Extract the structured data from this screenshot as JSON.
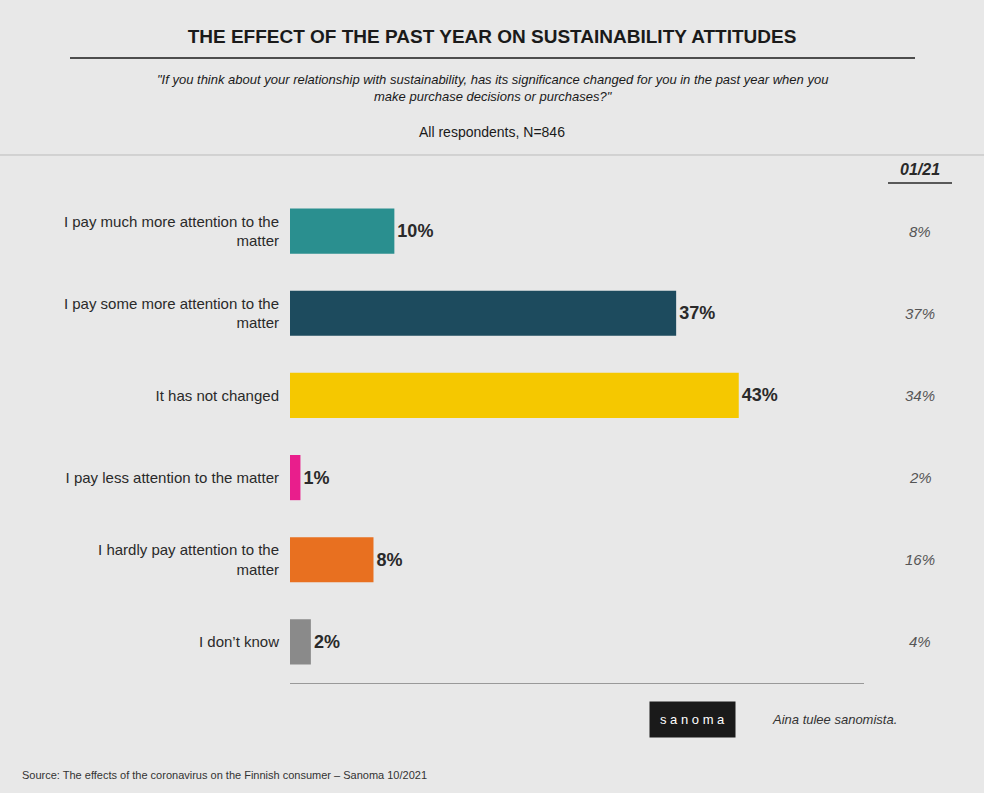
{
  "chart_data": {
    "type": "bar",
    "orientation": "horizontal",
    "title": "THE EFFECT OF THE PAST YEAR ON SUSTAINABILITY ATTITUDES",
    "subtitle": [
      "\"If you think about your relationship with sustainability, has its significance changed for you in the past year when you\nmake purchase decisions or purchases?\"",
      "All respondents, N=846"
    ],
    "categories": [
      "I pay much more attention to the\nmatter",
      "I pay some more attention to the\nmatter",
      "It has not changed",
      "I pay less attention to the matter",
      "I hardly pay attention to the\nmatter",
      "I don’t know"
    ],
    "values": [
      10,
      37,
      43,
      1,
      8,
      2
    ],
    "value_labels": [
      "10%",
      "37%",
      "43%",
      "1%",
      "8%",
      "2%"
    ],
    "colors": [
      "#2a8f8f",
      "#1d4b5e",
      "#f5c800",
      "#e91e8c",
      "#e87020",
      "#8a8a8a"
    ],
    "xlim": [
      0,
      55
    ],
    "data_labels": true,
    "tick_labels": "y",
    "grid": false,
    "comparison": {
      "label": "01/21",
      "values": [
        8,
        37,
        34,
        2,
        16,
        4
      ],
      "value_labels": [
        "8%",
        "37%",
        "34%",
        "2%",
        "16%",
        "4%"
      ]
    },
    "source": "Source: The effects of the coronavirus on the Finnish consumer – Sanoma 10/2021",
    "annotations": [
      "s a n o m a",
      "Aina tulee sanomista."
    ]
  }
}
